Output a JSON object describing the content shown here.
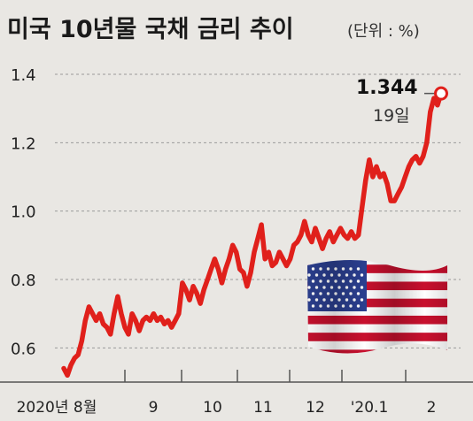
{
  "header": {
    "title": "미국 10년물 국채 금리 추이",
    "unit": "(단위 : %)"
  },
  "colors": {
    "background": "#e9e7e3",
    "series": "#e0201b",
    "flag_red": "#c8102e",
    "flag_blue": "#2b3f8f"
  },
  "icons": [
    "us-flag-icon"
  ],
  "chart_data": {
    "type": "line",
    "title": "미국 10년물 국채 금리 추이",
    "unit": "(단위 : %)",
    "xlabel": "",
    "ylabel": "",
    "ylim": [
      0.5,
      1.4
    ],
    "yticks": [
      0.6,
      0.8,
      1.0,
      1.2,
      1.4
    ],
    "grid": true,
    "x_tick_labels": [
      "2020년 8월",
      "9",
      "10",
      "11",
      "12",
      "'20.1",
      "2"
    ],
    "series": [
      {
        "values": [
          0.54,
          0.52,
          0.55,
          0.57,
          0.58,
          0.62,
          0.68,
          0.72,
          0.7,
          0.68,
          0.7,
          0.67,
          0.66,
          0.64,
          0.7,
          0.75,
          0.7,
          0.66,
          0.64,
          0.7,
          0.68,
          0.65,
          0.68,
          0.69,
          0.68,
          0.7,
          0.68,
          0.69,
          0.67,
          0.68,
          0.66,
          0.68,
          0.7,
          0.79,
          0.77,
          0.74,
          0.78,
          0.76,
          0.73,
          0.77,
          0.8,
          0.83,
          0.86,
          0.83,
          0.79,
          0.83,
          0.86,
          0.9,
          0.88,
          0.83,
          0.82,
          0.78,
          0.82,
          0.88,
          0.92,
          0.96,
          0.86,
          0.88,
          0.84,
          0.85,
          0.88,
          0.86,
          0.84,
          0.86,
          0.9,
          0.91,
          0.93,
          0.97,
          0.93,
          0.91,
          0.95,
          0.92,
          0.89,
          0.92,
          0.94,
          0.91,
          0.93,
          0.95,
          0.93,
          0.92,
          0.94,
          0.92,
          0.93,
          1.01,
          1.09,
          1.15,
          1.1,
          1.13,
          1.1,
          1.11,
          1.08,
          1.03,
          1.03,
          1.05,
          1.07,
          1.1,
          1.13,
          1.15,
          1.16,
          1.14,
          1.16,
          1.2,
          1.29,
          1.33,
          1.31,
          1.344
        ]
      }
    ],
    "annotation": {
      "value_label": "1.344",
      "day_label": "19일"
    }
  }
}
